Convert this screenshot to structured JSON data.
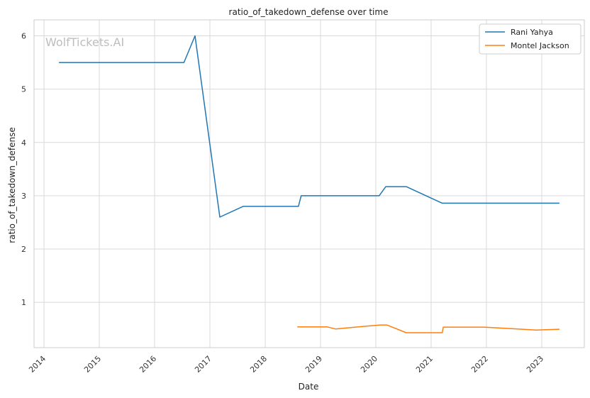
{
  "watermark": "WolfTickets.AI",
  "chart_data": {
    "type": "line",
    "title": "ratio_of_takedown_defense over time",
    "xlabel": "Date",
    "ylabel": "ratio_of_takedown_defense",
    "xlim": [
      2013.82,
      2023.77
    ],
    "ylim": [
      0.15,
      6.3
    ],
    "x_ticks": [
      2014,
      2015,
      2016,
      2017,
      2018,
      2019,
      2020,
      2021,
      2022,
      2023
    ],
    "x_tick_labels": [
      "2014",
      "2015",
      "2016",
      "2017",
      "2018",
      "2019",
      "2020",
      "2021",
      "2022",
      "2023"
    ],
    "y_ticks": [
      1,
      2,
      3,
      4,
      5,
      6
    ],
    "y_tick_labels": [
      "1",
      "2",
      "3",
      "4",
      "5",
      "6"
    ],
    "grid": true,
    "legend_position": "top-right",
    "series": [
      {
        "name": "Rani Yahya",
        "color": "#1f77b4",
        "points": [
          [
            2014.27,
            5.5
          ],
          [
            2016.53,
            5.5
          ],
          [
            2016.73,
            6.0
          ],
          [
            2017.18,
            2.6
          ],
          [
            2017.6,
            2.8
          ],
          [
            2018.6,
            2.8
          ],
          [
            2018.65,
            3.0
          ],
          [
            2020.06,
            3.0
          ],
          [
            2020.18,
            3.17
          ],
          [
            2020.55,
            3.17
          ],
          [
            2021.2,
            2.86
          ],
          [
            2023.32,
            2.86
          ]
        ]
      },
      {
        "name": "Montel Jackson",
        "color": "#ff7f0e",
        "points": [
          [
            2018.58,
            0.54
          ],
          [
            2019.12,
            0.54
          ],
          [
            2019.27,
            0.5
          ],
          [
            2019.9,
            0.56
          ],
          [
            2020.08,
            0.575
          ],
          [
            2020.2,
            0.575
          ],
          [
            2020.55,
            0.43
          ],
          [
            2021.2,
            0.43
          ],
          [
            2021.22,
            0.535
          ],
          [
            2021.95,
            0.535
          ],
          [
            2022.4,
            0.51
          ],
          [
            2022.9,
            0.48
          ],
          [
            2023.32,
            0.495
          ]
        ]
      }
    ]
  }
}
